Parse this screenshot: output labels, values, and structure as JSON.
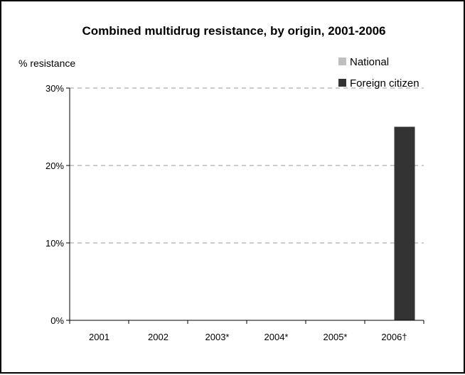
{
  "chart_data": {
    "type": "bar",
    "title": "Combined multidrug resistance, by origin, 2001-2006",
    "ylabel": "% resistance",
    "xlabel": "",
    "categories": [
      "2001",
      "2002",
      "2003*",
      "2004*",
      "2005*",
      "2006†"
    ],
    "series": [
      {
        "name": "National",
        "color": "#bfbfbf",
        "values": [
          0,
          0,
          0,
          0,
          0,
          0
        ]
      },
      {
        "name": "Foreign citizen",
        "color": "#333333",
        "values": [
          0,
          0,
          0,
          0,
          0,
          25
        ]
      }
    ],
    "ylim": [
      0,
      30
    ],
    "yticks": [
      0,
      10,
      20,
      30
    ],
    "ytick_labels": [
      "0%",
      "10%",
      "20%",
      "30%"
    ],
    "grid": true,
    "legend_position": "top-right"
  }
}
